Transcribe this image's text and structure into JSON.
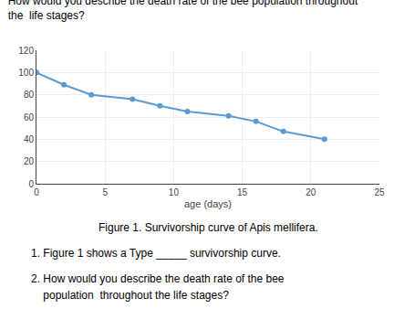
{
  "chart_data": {
    "type": "line",
    "title": "How would you describe the death rate of the bee population throughout\nthe  life stages?",
    "x": [
      0,
      2,
      4,
      7,
      9,
      11,
      14,
      16,
      18,
      21
    ],
    "values": [
      100,
      89,
      80,
      76,
      70,
      65,
      61,
      56,
      47,
      40
    ],
    "color": "#5b9bd5",
    "marker": "circle",
    "line_style": "solid",
    "xlabel": "age (days)",
    "xlim": [
      0,
      25
    ],
    "ylim": [
      0,
      120
    ],
    "xticks": [
      0,
      5,
      10,
      15,
      20,
      25
    ],
    "yticks": [
      0,
      20,
      40,
      60,
      80,
      100,
      120
    ],
    "grid": true,
    "annotations": [
      "Figure 1. Survivorship curve of Apis mellifera.",
      "1. Figure 1 shows a Type _____ survivorship curve.",
      "2. How would you describe the death rate of the bee",
      "    population  throughout the life stages?"
    ]
  }
}
